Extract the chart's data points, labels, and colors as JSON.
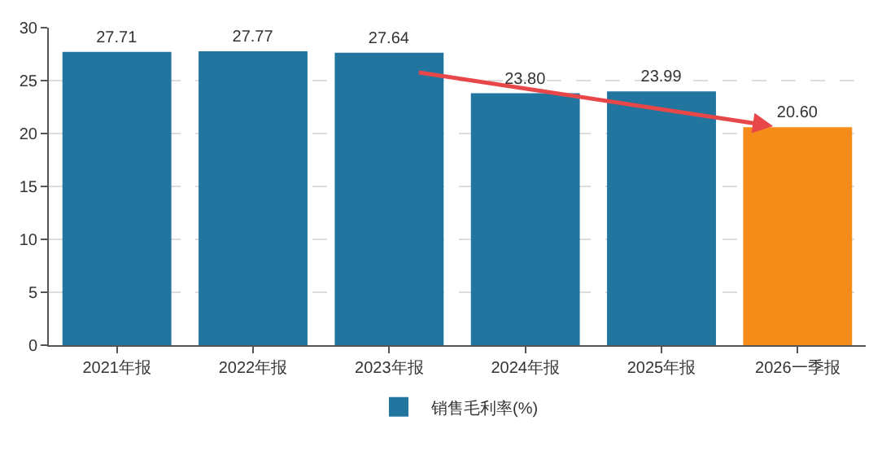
{
  "chart_data": {
    "type": "bar",
    "categories": [
      "2021年报",
      "2022年报",
      "2023年报",
      "2024年报",
      "2025年报",
      "2026一季报"
    ],
    "series": [
      {
        "name": "销售毛利率(%)",
        "colors": [
          "#21759f",
          "#21759f",
          "#21759f",
          "#21759f",
          "#21759f",
          "#f58c1a"
        ],
        "values": [
          27.71,
          27.77,
          27.64,
          23.8,
          23.99,
          20.6
        ],
        "value_labels": [
          "27.71",
          "27.77",
          "27.64",
          "23.80",
          "23.99",
          "20.60"
        ]
      }
    ],
    "ylim": [
      0,
      30
    ],
    "yticks": [
      0,
      5,
      10,
      15,
      20,
      25,
      30
    ],
    "grid": "y",
    "legend": "bottom"
  }
}
